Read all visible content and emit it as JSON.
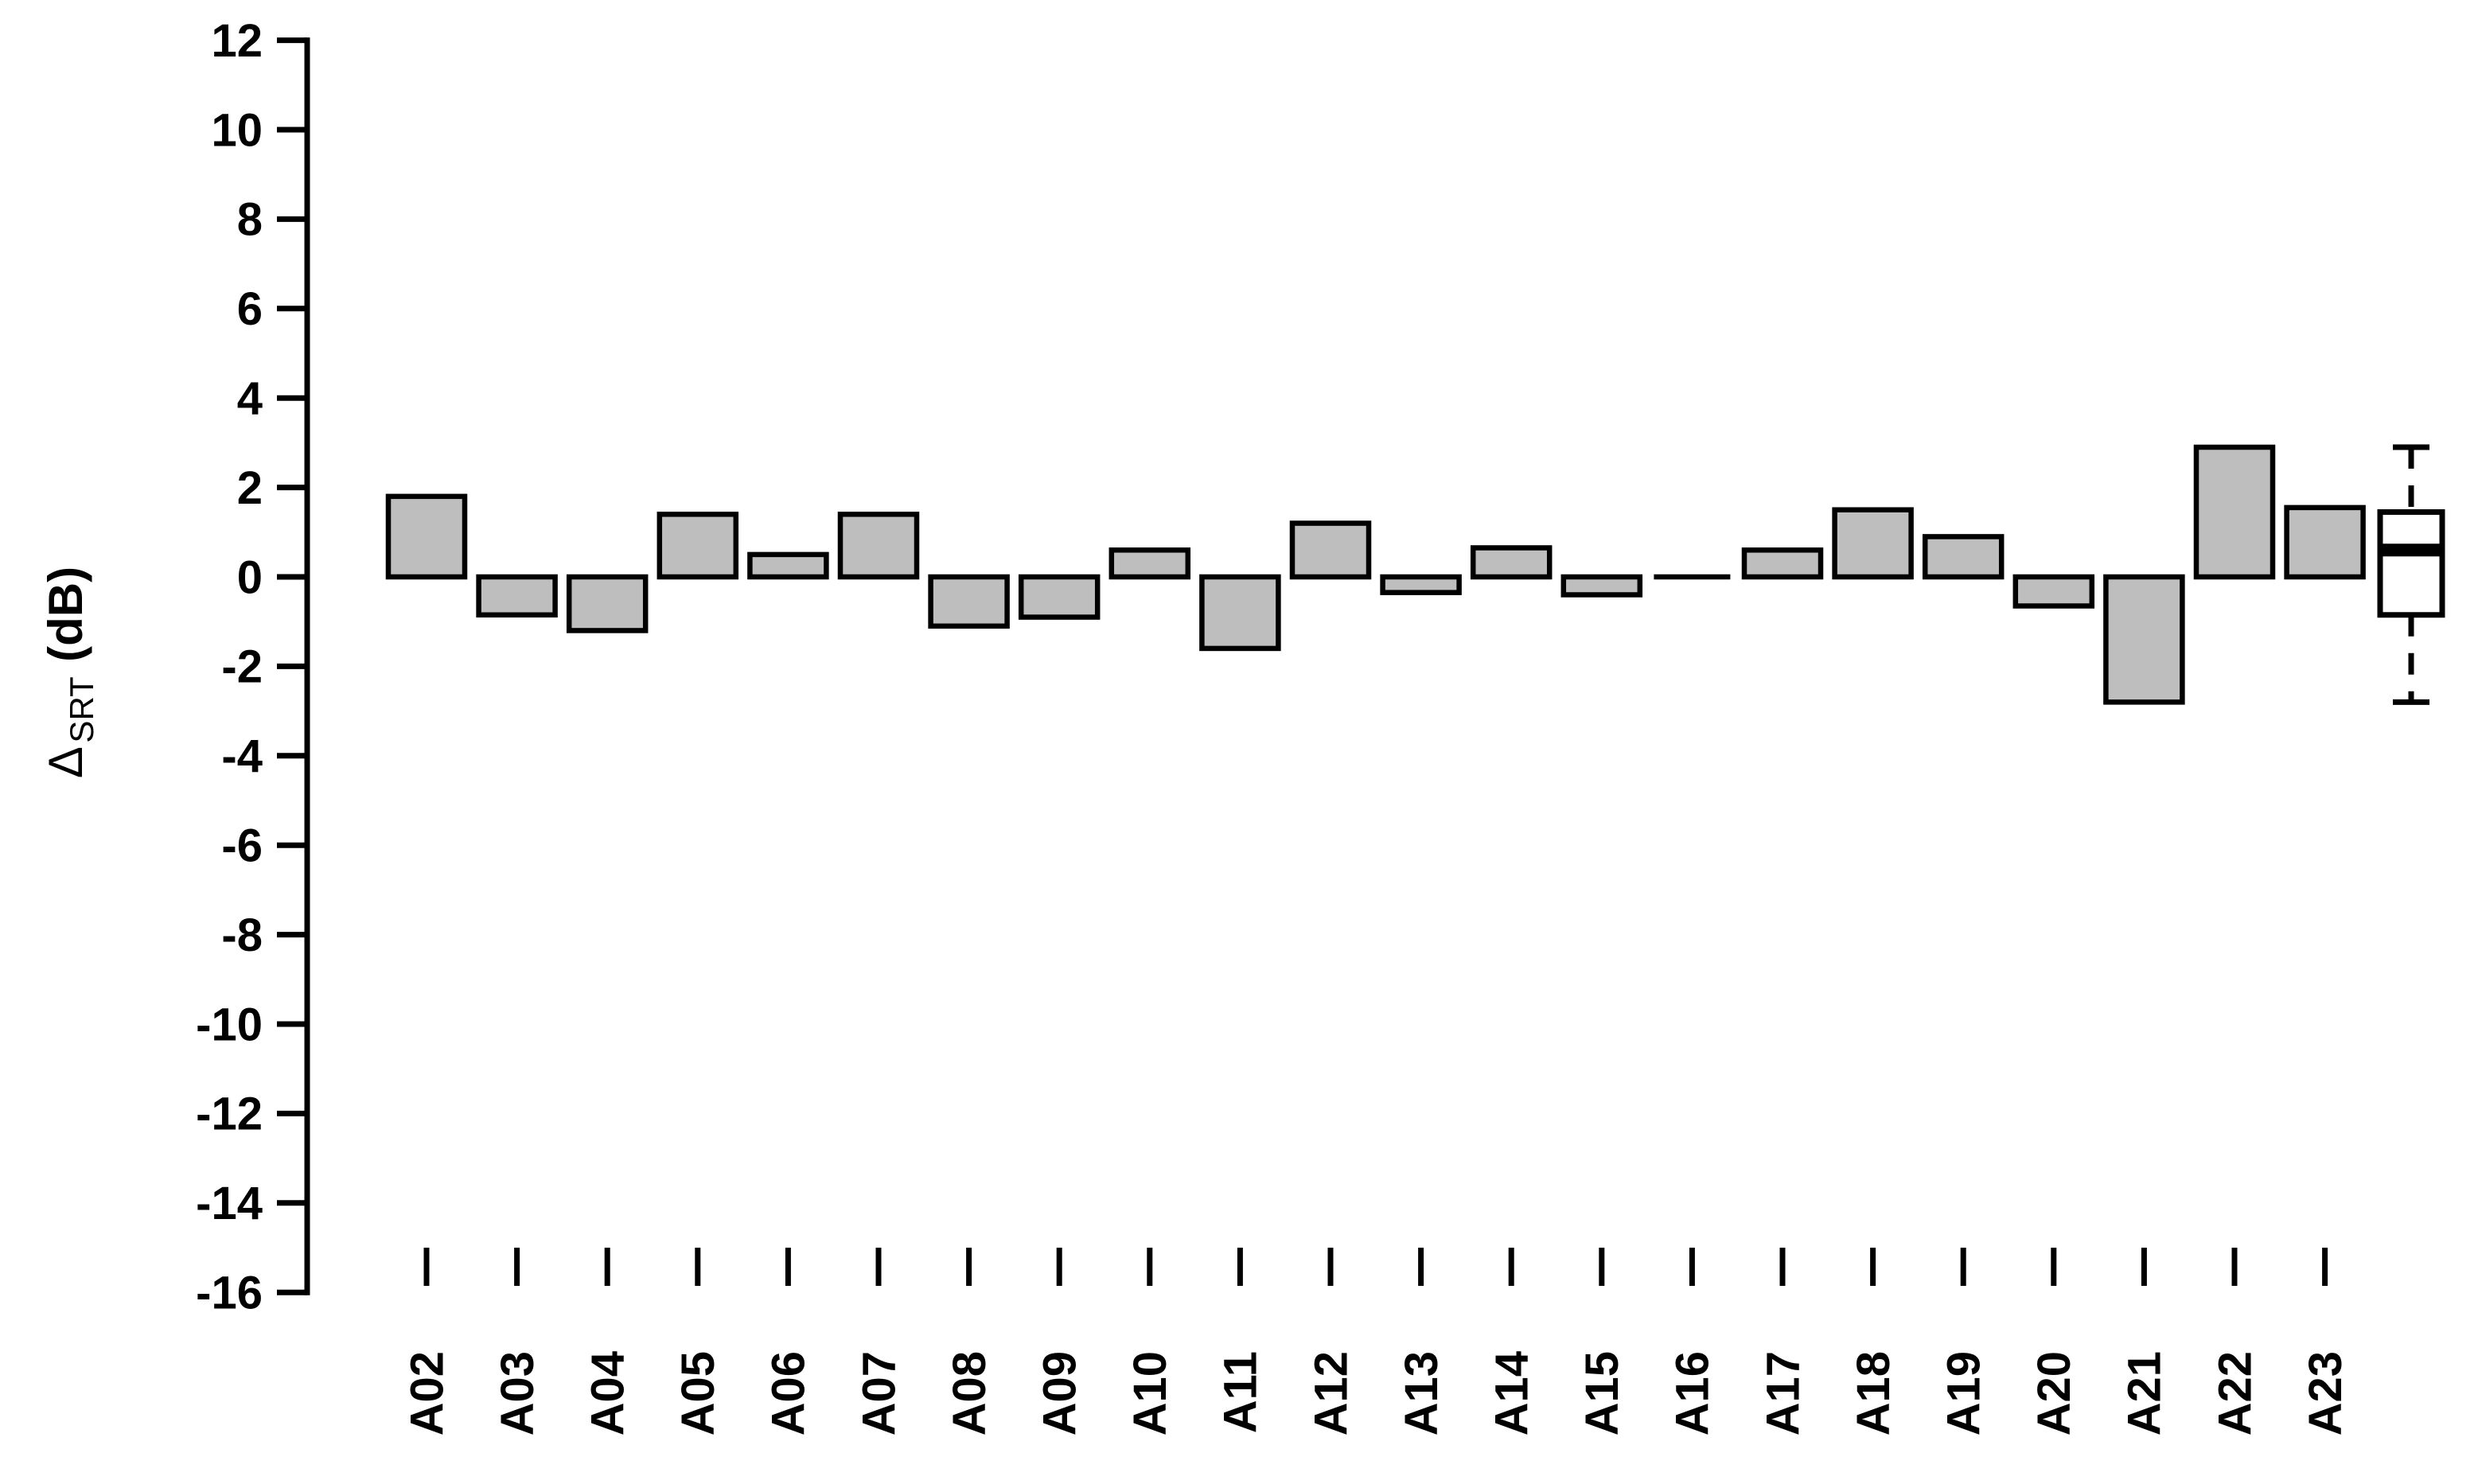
{
  "figure": {
    "background": "#ffffff",
    "text_color": "#000000"
  },
  "chart_data": {
    "type": "bar",
    "title": "",
    "categories": [
      "A02",
      "A03",
      "A04",
      "A05",
      "A06",
      "A07",
      "A08",
      "A09",
      "A10",
      "A11",
      "A12",
      "A13",
      "A14",
      "A15",
      "A16",
      "A17",
      "A18",
      "A19",
      "A20",
      "A21",
      "A22",
      "A23"
    ],
    "values": [
      1.8,
      -0.85,
      -1.2,
      1.4,
      0.5,
      1.4,
      -1.1,
      -0.9,
      0.6,
      -1.6,
      1.2,
      -0.35,
      0.65,
      -0.4,
      0.0,
      0.6,
      1.5,
      0.9,
      -0.65,
      -2.8,
      2.9,
      1.55
    ],
    "ylabel": "Δ_SRT (dB)",
    "ylabel_delta": "Δ",
    "ylabel_sub": "SRT",
    "ylabel_unit": "(dB)",
    "xlabel": "",
    "ylim": [
      -16,
      12
    ],
    "ytick_step": 2,
    "yticks": [
      12,
      10,
      8,
      6,
      4,
      2,
      0,
      -2,
      -4,
      -6,
      -8,
      -10,
      -12,
      -14,
      -16
    ],
    "grid": false,
    "legend": null,
    "bar_fill": "#bebebe",
    "bar_stroke": "#000000",
    "boxplot": {
      "whisker_low": -2.8,
      "q1": -0.85,
      "median": 0.6,
      "q3": 1.45,
      "whisker_high": 2.9,
      "box_fill": "#ffffff",
      "median_color": "#000000"
    }
  }
}
